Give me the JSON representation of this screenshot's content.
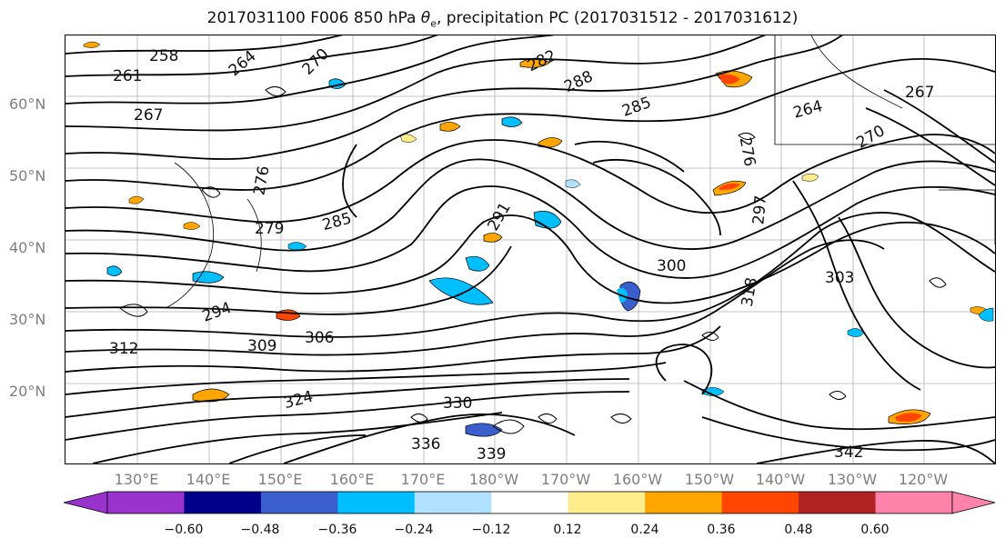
{
  "title": {
    "prefix": "2017031100 F006 850 hPa ",
    "symbol": "θ",
    "subscript": "e",
    "suffix": ", precipitation PC (2017031512 - 2017031612)"
  },
  "axes": {
    "lat_ticks": [
      "60°N",
      "50°N",
      "40°N",
      "30°N",
      "20°N"
    ],
    "lon_ticks": [
      "130°E",
      "140°E",
      "150°E",
      "160°E",
      "170°E",
      "180°W",
      "170°W",
      "160°W",
      "150°W",
      "140°W",
      "130°W",
      "120°W"
    ],
    "grid": true
  },
  "colorbar": {
    "ticks": [
      "−0.60",
      "−0.48",
      "−0.36",
      "−0.24",
      "−0.12",
      "0.12",
      "0.24",
      "0.36",
      "0.48",
      "0.60"
    ],
    "colors": [
      "#9a32cd",
      "#00008b",
      "#3a5fcd",
      "#00bfff",
      "#b0e2ff",
      "#ffffff",
      "#ffec8b",
      "#ffa500",
      "#ff4500",
      "#b22222",
      "#ff82ab"
    ],
    "extend": "both"
  },
  "contour_labels": [
    "258",
    "261",
    "267",
    "264",
    "270",
    "282",
    "288",
    "276",
    "285",
    "279",
    "285",
    "294",
    "297",
    "300",
    "303",
    "306",
    "309",
    "312",
    "318",
    "324",
    "330",
    "336",
    "339",
    "342",
    "267",
    "264",
    "270",
    "276",
    "291"
  ],
  "colors": {
    "contour": "#000000",
    "grid": "#b0b0b0",
    "tick_text": "#7f7f7f"
  }
}
